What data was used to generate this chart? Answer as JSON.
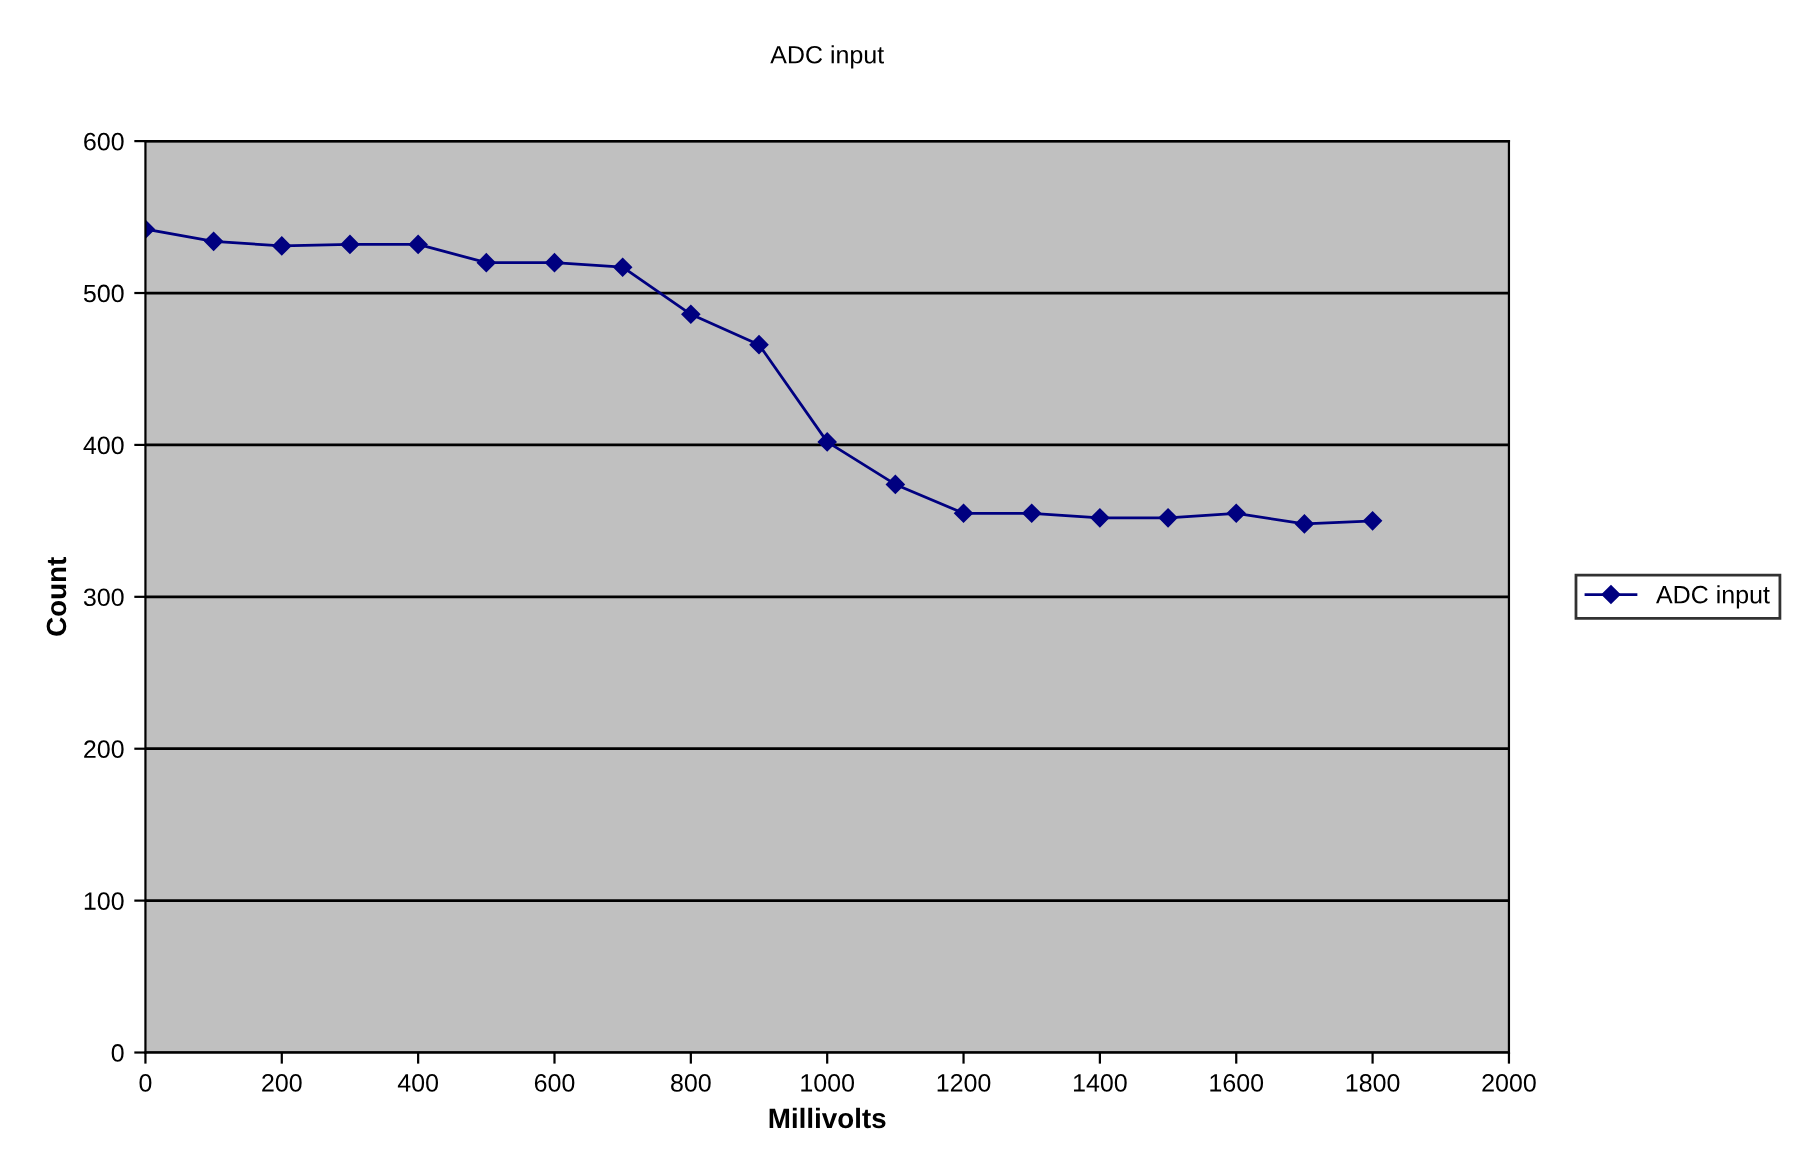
{
  "chart_data": {
    "type": "line",
    "title": "ADC input",
    "xlabel": "Millivolts",
    "ylabel": "Count",
    "x": [
      0,
      100,
      200,
      300,
      400,
      500,
      600,
      700,
      800,
      900,
      1000,
      1100,
      1200,
      1300,
      1400,
      1500,
      1600,
      1700,
      1800
    ],
    "series": [
      {
        "name": "ADC input",
        "color": "#000080",
        "values": [
          542,
          534,
          531,
          532,
          532,
          520,
          520,
          517,
          486,
          466,
          402,
          374,
          355,
          355,
          352,
          352,
          355,
          348,
          350
        ]
      }
    ],
    "xlim": [
      0,
      2000
    ],
    "xticks": [
      0,
      200,
      400,
      600,
      800,
      1000,
      1200,
      1400,
      1600,
      1800,
      2000
    ],
    "ylim": [
      0,
      600
    ],
    "yticks": [
      0,
      100,
      200,
      300,
      400,
      500,
      600
    ],
    "grid": "y",
    "legend": "right",
    "marker": "diamond",
    "line_style": "solid"
  }
}
